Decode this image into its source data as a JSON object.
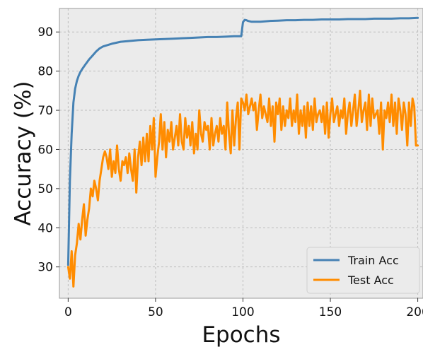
{
  "chart_data": {
    "type": "line",
    "xlabel": "Epochs",
    "ylabel": "Accuracy (%)",
    "xlim": [
      -5,
      203
    ],
    "ylim": [
      22,
      96
    ],
    "xticks": [
      0,
      50,
      100,
      150,
      200
    ],
    "yticks": [
      30,
      40,
      50,
      60,
      70,
      80,
      90
    ],
    "grid": true,
    "legend_position": "lower-right",
    "series": [
      {
        "name": "Train Acc",
        "color": "#4682b4",
        "x": [
          0,
          1,
          2,
          3,
          4,
          5,
          6,
          7,
          8,
          10,
          12,
          14,
          16,
          18,
          20,
          25,
          30,
          35,
          40,
          45,
          50,
          55,
          60,
          65,
          70,
          75,
          80,
          85,
          90,
          95,
          99,
          100,
          101,
          102,
          103,
          105,
          110,
          115,
          120,
          125,
          130,
          135,
          140,
          145,
          150,
          155,
          160,
          165,
          170,
          175,
          180,
          185,
          190,
          195,
          200
        ],
        "y": [
          30.5,
          52,
          64,
          72,
          75.5,
          77.5,
          78.8,
          79.8,
          80.5,
          81.8,
          83,
          84,
          85,
          85.8,
          86.3,
          87,
          87.5,
          87.7,
          87.9,
          88,
          88.1,
          88.2,
          88.3,
          88.4,
          88.5,
          88.6,
          88.7,
          88.7,
          88.8,
          88.9,
          88.9,
          92.5,
          93.1,
          93,
          92.8,
          92.6,
          92.6,
          92.8,
          92.9,
          93,
          93,
          93.1,
          93.1,
          93.2,
          93.2,
          93.2,
          93.3,
          93.3,
          93.3,
          93.4,
          93.4,
          93.4,
          93.5,
          93.5,
          93.6
        ]
      },
      {
        "name": "Test Acc",
        "color": "#ff8c00",
        "x": [
          0,
          1,
          2,
          3,
          4,
          5,
          6,
          7,
          8,
          9,
          10,
          11,
          12,
          13,
          14,
          15,
          16,
          17,
          18,
          19,
          20,
          21,
          22,
          23,
          24,
          25,
          26,
          27,
          28,
          29,
          30,
          31,
          32,
          33,
          34,
          35,
          36,
          37,
          38,
          39,
          40,
          41,
          42,
          43,
          44,
          45,
          46,
          47,
          48,
          49,
          50,
          51,
          52,
          53,
          54,
          55,
          56,
          57,
          58,
          59,
          60,
          61,
          62,
          63,
          64,
          65,
          66,
          67,
          68,
          69,
          70,
          71,
          72,
          73,
          74,
          75,
          76,
          77,
          78,
          79,
          80,
          81,
          82,
          83,
          84,
          85,
          86,
          87,
          88,
          89,
          90,
          91,
          92,
          93,
          94,
          95,
          96,
          97,
          98,
          99,
          100,
          101,
          102,
          103,
          104,
          105,
          106,
          107,
          108,
          109,
          110,
          111,
          112,
          113,
          114,
          115,
          116,
          117,
          118,
          119,
          120,
          121,
          122,
          123,
          124,
          125,
          126,
          127,
          128,
          129,
          130,
          131,
          132,
          133,
          134,
          135,
          136,
          137,
          138,
          139,
          140,
          141,
          142,
          143,
          144,
          145,
          146,
          147,
          148,
          149,
          150,
          151,
          152,
          153,
          154,
          155,
          156,
          157,
          158,
          159,
          160,
          161,
          162,
          163,
          164,
          165,
          166,
          167,
          168,
          169,
          170,
          171,
          172,
          173,
          174,
          175,
          176,
          177,
          178,
          179,
          180,
          181,
          182,
          183,
          184,
          185,
          186,
          187,
          188,
          189,
          190,
          191,
          192,
          193,
          194,
          195,
          196,
          197,
          198,
          199,
          200
        ],
        "y": [
          30,
          27,
          34,
          25,
          33,
          36,
          41,
          37,
          42,
          46,
          38,
          42,
          45,
          50,
          48,
          52,
          50,
          47,
          52,
          55,
          58,
          59.5,
          58,
          55,
          60,
          53,
          57,
          54,
          61,
          55,
          52,
          57,
          56,
          58,
          54,
          59,
          55,
          52,
          60,
          49,
          58,
          62,
          56,
          63,
          57,
          64,
          57,
          66,
          60,
          68,
          53,
          58,
          62,
          69,
          60,
          67,
          58,
          65,
          62,
          67,
          60,
          63,
          66,
          61,
          69,
          62,
          60,
          68,
          63,
          66,
          61,
          67,
          59,
          64,
          60,
          70,
          64,
          62,
          67,
          65,
          66,
          60,
          68,
          61,
          64,
          66,
          62,
          68,
          64,
          66,
          60,
          72,
          64,
          59,
          70,
          61,
          68,
          72,
          60,
          73,
          72,
          70,
          74,
          69,
          71,
          73,
          70,
          72,
          65,
          70,
          74,
          68,
          71,
          69,
          67,
          73,
          66,
          71,
          62,
          72,
          69,
          73,
          65,
          71,
          66,
          70,
          68,
          73,
          66,
          70,
          67,
          74,
          64,
          70,
          66,
          71,
          63,
          72,
          66,
          71,
          65,
          73,
          67,
          69,
          70,
          67,
          71,
          64,
          72,
          63,
          69,
          73,
          67,
          69,
          71,
          66,
          70,
          68,
          73,
          64,
          69,
          72,
          66,
          70,
          74,
          66,
          70,
          75,
          67,
          70,
          72,
          65,
          74,
          66,
          73,
          68,
          69,
          70,
          64,
          72,
          60,
          70,
          68,
          72,
          67,
          74,
          66,
          72,
          64,
          73,
          70,
          65,
          72,
          69,
          61,
          72,
          66,
          73,
          71,
          61,
          61
        ]
      }
    ]
  }
}
